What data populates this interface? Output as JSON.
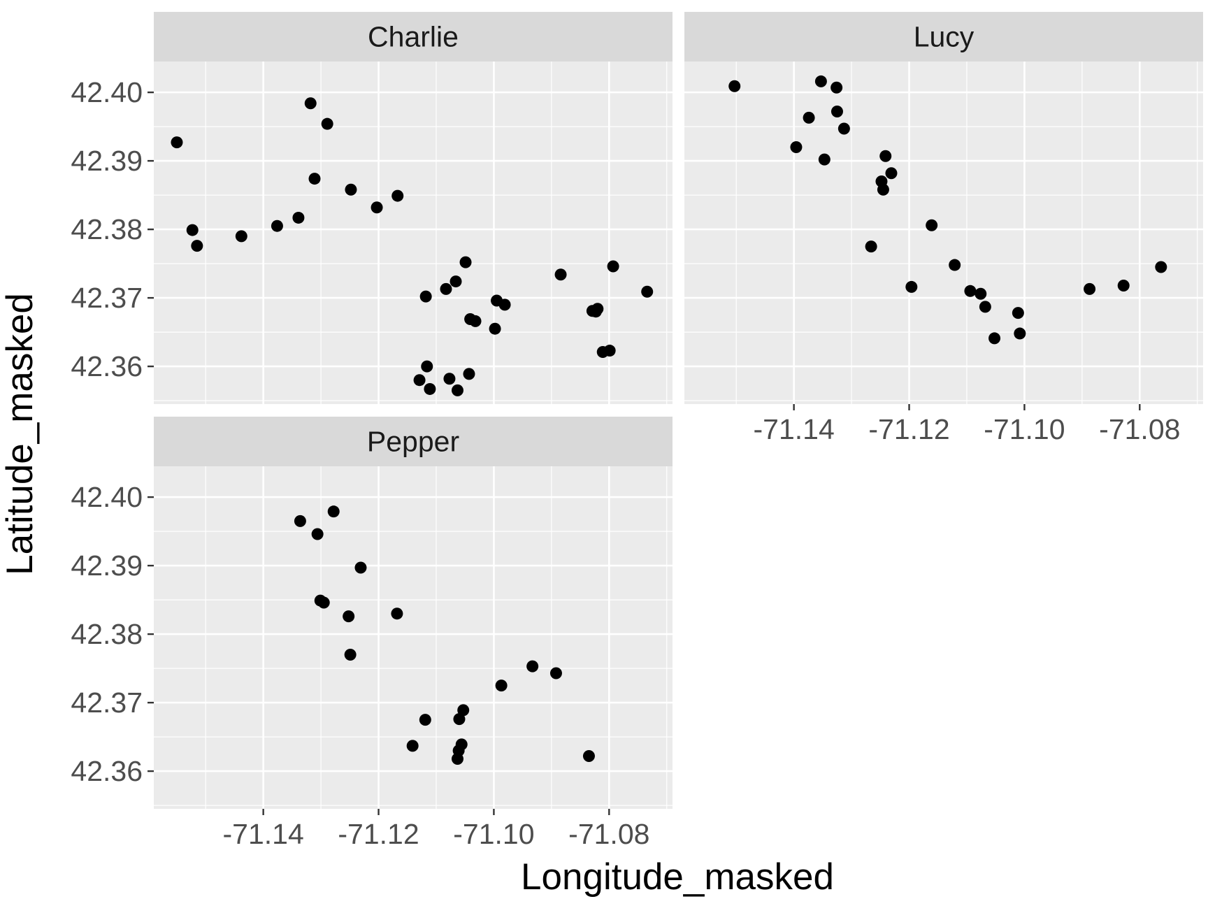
{
  "chart_data": {
    "type": "scatter",
    "xlabel": "Longitude_masked",
    "ylabel": "Latitude_masked",
    "xlim": [
      -71.159,
      -71.069
    ],
    "ylim": [
      42.3545,
      42.4045
    ],
    "x_ticks": [
      -71.14,
      -71.12,
      -71.1,
      -71.08
    ],
    "x_tick_labels": [
      "-71.14",
      "-71.12",
      "-71.10",
      "-71.08"
    ],
    "y_ticks": [
      42.36,
      42.37,
      42.38,
      42.39,
      42.4
    ],
    "y_tick_labels": [
      "42.36",
      "42.37",
      "42.38",
      "42.39",
      "42.40"
    ],
    "grid": true,
    "legend": "none",
    "point_color": "#000000",
    "panel_background": "#ebebeb",
    "strip_background": "#d9d9d9",
    "facets": [
      {
        "name": "Charlie",
        "points": [
          {
            "x": -71.155,
            "y": 42.3927
          },
          {
            "x": -71.1523,
            "y": 42.3799
          },
          {
            "x": -71.1515,
            "y": 42.3776
          },
          {
            "x": -71.1438,
            "y": 42.379
          },
          {
            "x": -71.1376,
            "y": 42.3805
          },
          {
            "x": -71.1339,
            "y": 42.3817
          },
          {
            "x": -71.1318,
            "y": 42.3984
          },
          {
            "x": -71.1311,
            "y": 42.3874
          },
          {
            "x": -71.1289,
            "y": 42.3954
          },
          {
            "x": -71.1248,
            "y": 42.3858
          },
          {
            "x": -71.1203,
            "y": 42.3832
          },
          {
            "x": -71.1167,
            "y": 42.3849
          },
          {
            "x": -71.1129,
            "y": 42.358
          },
          {
            "x": -71.1118,
            "y": 42.3702
          },
          {
            "x": -71.1116,
            "y": 42.36
          },
          {
            "x": -71.1111,
            "y": 42.3567
          },
          {
            "x": -71.1083,
            "y": 42.3713
          },
          {
            "x": -71.1077,
            "y": 42.3582
          },
          {
            "x": -71.1066,
            "y": 42.3724
          },
          {
            "x": -71.1063,
            "y": 42.3565
          },
          {
            "x": -71.1049,
            "y": 42.3752
          },
          {
            "x": -71.1043,
            "y": 42.3589
          },
          {
            "x": -71.1041,
            "y": 42.3669
          },
          {
            "x": -71.1032,
            "y": 42.3666
          },
          {
            "x": -71.0998,
            "y": 42.3655
          },
          {
            "x": -71.0995,
            "y": 42.3696
          },
          {
            "x": -71.0981,
            "y": 42.369
          },
          {
            "x": -71.0884,
            "y": 42.3734
          },
          {
            "x": -71.0829,
            "y": 42.3681
          },
          {
            "x": -71.0823,
            "y": 42.368
          },
          {
            "x": -71.082,
            "y": 42.3684
          },
          {
            "x": -71.0811,
            "y": 42.3621
          },
          {
            "x": -71.0799,
            "y": 42.3623
          },
          {
            "x": -71.0793,
            "y": 42.3746
          },
          {
            "x": -71.0734,
            "y": 42.3709
          }
        ]
      },
      {
        "name": "Lucy",
        "points": [
          {
            "x": -71.1503,
            "y": 42.4009
          },
          {
            "x": -71.1396,
            "y": 42.392
          },
          {
            "x": -71.1374,
            "y": 42.3963
          },
          {
            "x": -71.1353,
            "y": 42.4016
          },
          {
            "x": -71.1347,
            "y": 42.3902
          },
          {
            "x": -71.1326,
            "y": 42.4007
          },
          {
            "x": -71.1325,
            "y": 42.3972
          },
          {
            "x": -71.1313,
            "y": 42.3947
          },
          {
            "x": -71.1266,
            "y": 42.3775
          },
          {
            "x": -71.1248,
            "y": 42.387
          },
          {
            "x": -71.1245,
            "y": 42.3858
          },
          {
            "x": -71.1241,
            "y": 42.3907
          },
          {
            "x": -71.1231,
            "y": 42.3882
          },
          {
            "x": -71.1196,
            "y": 42.3716
          },
          {
            "x": -71.1161,
            "y": 42.3806
          },
          {
            "x": -71.1121,
            "y": 42.3748
          },
          {
            "x": -71.1094,
            "y": 42.371
          },
          {
            "x": -71.1076,
            "y": 42.3706
          },
          {
            "x": -71.1068,
            "y": 42.3687
          },
          {
            "x": -71.1052,
            "y": 42.3641
          },
          {
            "x": -71.1011,
            "y": 42.3678
          },
          {
            "x": -71.1008,
            "y": 42.3648
          },
          {
            "x": -71.0887,
            "y": 42.3713
          },
          {
            "x": -71.0828,
            "y": 42.3718
          },
          {
            "x": -71.0763,
            "y": 42.3745
          }
        ]
      },
      {
        "name": "Pepper",
        "points": [
          {
            "x": -71.1336,
            "y": 42.3965
          },
          {
            "x": -71.1306,
            "y": 42.3946
          },
          {
            "x": -71.1301,
            "y": 42.3849
          },
          {
            "x": -71.1295,
            "y": 42.3846
          },
          {
            "x": -71.1278,
            "y": 42.3979
          },
          {
            "x": -71.1252,
            "y": 42.3826
          },
          {
            "x": -71.1249,
            "y": 42.377
          },
          {
            "x": -71.1231,
            "y": 42.3897
          },
          {
            "x": -71.1168,
            "y": 42.383
          },
          {
            "x": -71.1141,
            "y": 42.3637
          },
          {
            "x": -71.1119,
            "y": 42.3675
          },
          {
            "x": -71.1063,
            "y": 42.3618
          },
          {
            "x": -71.1061,
            "y": 42.363
          },
          {
            "x": -71.106,
            "y": 42.3676
          },
          {
            "x": -71.1056,
            "y": 42.3639
          },
          {
            "x": -71.1053,
            "y": 42.3689
          },
          {
            "x": -71.0987,
            "y": 42.3725
          },
          {
            "x": -71.0933,
            "y": 42.3753
          },
          {
            "x": -71.0892,
            "y": 42.3743
          },
          {
            "x": -71.0835,
            "y": 42.3622
          }
        ]
      }
    ]
  }
}
